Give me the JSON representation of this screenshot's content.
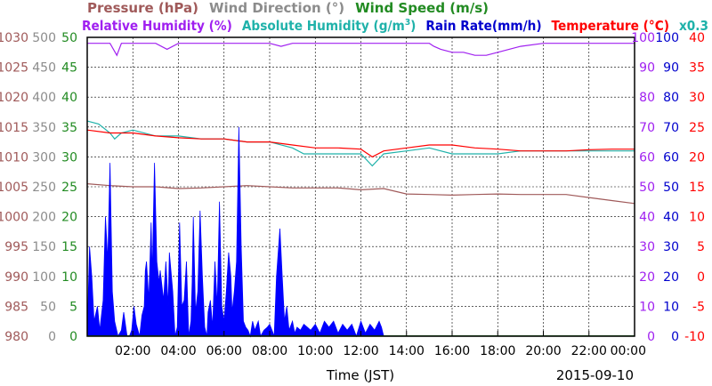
{
  "chart_data": {
    "type": "area",
    "title": "",
    "date": "2015-09-10",
    "xlabel": "Time (JST)",
    "x_range_hours": [
      0,
      24
    ],
    "x_ticks": [
      "02:00",
      "04:00",
      "06:00",
      "08:00",
      "10:00",
      "12:00",
      "14:00",
      "16:00",
      "18:00",
      "20:00",
      "22:00",
      "00:00"
    ],
    "grid": true,
    "legend": [
      {
        "row": 1,
        "segments": [
          {
            "text": "Pressure (hPa)",
            "color": "#a05a5a"
          },
          {
            "text": "Wind Direction (°)",
            "color": "#8c8c8c"
          },
          {
            "text": "Wind Speed (m/s)",
            "color": "#228b22"
          }
        ]
      },
      {
        "row": 2,
        "segments": [
          {
            "text": "Relative Humidity (%)",
            "color": "#a020f0"
          },
          {
            "text": "Absolute Humidity (g/m",
            "sup": "3",
            "tail": ")",
            "color": "#20b2aa"
          },
          {
            "text": "Rain Rate(mm/h)",
            "color": "#0000cd"
          },
          {
            "text": "Temperature (°C)",
            "color": "#ff0000"
          },
          {
            "text": "x0.3",
            "color": "#20b2aa"
          }
        ]
      }
    ],
    "axes": {
      "pressure": {
        "side": "left",
        "color": "#a05a5a",
        "ylim": [
          980,
          1030
        ],
        "ticks": [
          "980",
          "985",
          "990",
          "995",
          "1000",
          "1005",
          "1010",
          "1015",
          "1020",
          "1025",
          "1030"
        ]
      },
      "wind_direction": {
        "side": "left",
        "color": "#8c8c8c",
        "ylim": [
          0,
          500
        ],
        "ticks": [
          "0",
          "50",
          "100",
          "150",
          "200",
          "250",
          "300",
          "350",
          "400",
          "450",
          "500"
        ]
      },
      "wind_speed": {
        "side": "left",
        "color": "#228b22",
        "ylim": [
          0,
          50
        ],
        "ticks": [
          "0",
          "5",
          "10",
          "15",
          "20",
          "25",
          "30",
          "35",
          "40",
          "45",
          "50"
        ]
      },
      "relative_humidity": {
        "side": "right",
        "color": "#a020f0",
        "ylim": [
          0,
          100
        ],
        "ticks": [
          "0",
          "10",
          "20",
          "30",
          "40",
          "50",
          "60",
          "70",
          "80",
          "90",
          "100"
        ]
      },
      "rain_rate": {
        "side": "right",
        "color": "#0000cd",
        "ylim": [
          0,
          100
        ],
        "ticks": [
          "0",
          "10",
          "20",
          "30",
          "40",
          "50",
          "60",
          "70",
          "80",
          "90",
          "100"
        ]
      },
      "temperature": {
        "side": "right",
        "color": "#ff0000",
        "ylim": [
          -10,
          40
        ],
        "ticks": [
          "-10",
          "-5",
          "0",
          "5",
          "10",
          "15",
          "20",
          "25",
          "30",
          "35",
          "40"
        ]
      }
    },
    "series": [
      {
        "name": "Relative Humidity (%)",
        "axis": "relative_humidity",
        "color": "#a020f0",
        "x": [
          0,
          1.0,
          1.3,
          1.5,
          2.0,
          3.0,
          3.5,
          4.0,
          5.0,
          6.0,
          7.0,
          8.0,
          8.5,
          9.0,
          10.0,
          11.0,
          12.0,
          13.0,
          13.5,
          14.0,
          15.0,
          15.2,
          15.5,
          16.0,
          16.5,
          17.0,
          17.5,
          18.0,
          19.0,
          20.0,
          21.0,
          22.0,
          23.0,
          24.0
        ],
        "y": [
          98,
          98,
          94,
          98,
          98,
          98,
          96,
          98,
          98,
          98,
          98,
          98,
          97,
          98,
          98,
          98,
          98,
          98,
          98,
          98,
          98,
          97,
          96,
          95,
          95,
          94,
          94,
          95,
          97,
          98,
          98,
          98,
          98,
          98
        ]
      },
      {
        "name": "Absolute Humidity (g/m3) x0.3",
        "axis": "relative_humidity",
        "color": "#20b2aa",
        "x": [
          0,
          0.5,
          1.0,
          1.2,
          1.5,
          2.0,
          3.0,
          4.0,
          5.0,
          6.0,
          7.0,
          8.0,
          9.0,
          9.5,
          10.0,
          11.0,
          12.0,
          12.5,
          13.0,
          14.0,
          15.0,
          16.0,
          17.0,
          18.0,
          19.0,
          20.0,
          21.0,
          22.0,
          23.0,
          24.0
        ],
        "y": [
          72,
          71,
          68,
          66,
          68,
          69,
          67,
          67,
          66,
          66,
          65,
          65,
          63,
          61,
          61,
          61,
          61,
          57,
          61,
          62,
          63,
          61,
          61,
          61,
          62,
          62,
          62,
          62,
          62,
          62
        ]
      },
      {
        "name": "Temperature (°C)",
        "axis": "temperature",
        "color": "#ff0000",
        "x": [
          0,
          1.0,
          2.0,
          3.0,
          4.0,
          5.0,
          6.0,
          7.0,
          8.0,
          9.0,
          10.0,
          11.0,
          12.0,
          12.5,
          13.0,
          14.0,
          15.0,
          16.0,
          17.0,
          18.0,
          19.0,
          20.0,
          21.0,
          22.0,
          23.0,
          24.0
        ],
        "y": [
          24.5,
          24.0,
          24.0,
          23.5,
          23.2,
          23.0,
          23.0,
          22.5,
          22.5,
          22.0,
          21.5,
          21.5,
          21.3,
          20.0,
          21.0,
          21.5,
          22.0,
          22.0,
          21.5,
          21.3,
          21.0,
          21.0,
          21.0,
          21.2,
          21.3,
          21.3
        ]
      },
      {
        "name": "Pressure (hPa)",
        "axis": "pressure",
        "color": "#a05a5a",
        "x": [
          0,
          1.0,
          2.0,
          3.0,
          4.0,
          5.0,
          6.0,
          7.0,
          8.0,
          9.0,
          10.0,
          11.0,
          12.0,
          13.0,
          14.0,
          15.0,
          16.0,
          17.0,
          18.0,
          19.0,
          20.0,
          21.0,
          22.0,
          23.0,
          24.0
        ],
        "y": [
          1005.5,
          1005.2,
          1005.0,
          1005.0,
          1004.7,
          1004.8,
          1005.0,
          1005.2,
          1005.0,
          1004.8,
          1004.8,
          1004.8,
          1004.5,
          1004.7,
          1003.8,
          1003.7,
          1003.6,
          1003.7,
          1003.8,
          1003.7,
          1003.7,
          1003.7,
          1003.2,
          1002.7,
          1002.2
        ]
      },
      {
        "name": "Rain Rate(mm/h)",
        "axis": "rain_rate",
        "color": "#0000ff",
        "x": [
          0,
          0.1,
          0.2,
          0.3,
          0.45,
          0.55,
          0.7,
          0.8,
          0.9,
          1.0,
          1.1,
          1.2,
          1.35,
          1.5,
          1.6,
          1.75,
          1.85,
          1.95,
          2.05,
          2.15,
          2.3,
          2.4,
          2.5,
          2.55,
          2.6,
          2.7,
          2.8,
          2.85,
          2.95,
          3.05,
          3.15,
          3.2,
          3.35,
          3.45,
          3.55,
          3.6,
          3.75,
          3.85,
          3.95,
          4.05,
          4.15,
          4.25,
          4.35,
          4.45,
          4.55,
          4.6,
          4.65,
          4.75,
          4.85,
          4.95,
          5.05,
          5.15,
          5.25,
          5.3,
          5.4,
          5.5,
          5.6,
          5.7,
          5.8,
          5.9,
          6.0,
          6.1,
          6.2,
          6.3,
          6.35,
          6.45,
          6.55,
          6.65,
          6.75,
          6.85,
          6.95,
          7.05,
          7.15,
          7.25,
          7.35,
          7.5,
          7.6,
          7.75,
          7.9,
          8.0,
          8.1,
          8.2,
          8.3,
          8.45,
          8.55,
          8.65,
          8.75,
          8.85,
          9.0,
          9.1,
          9.2,
          9.35,
          9.5,
          9.65,
          9.8,
          10.0,
          10.2,
          10.4,
          10.6,
          10.8,
          11.0,
          11.2,
          11.4,
          11.6,
          11.8,
          12.0,
          12.2,
          12.4,
          12.6,
          12.8,
          12.9,
          13.0,
          13.01,
          24.0
        ],
        "y": [
          0,
          30,
          20,
          5,
          10,
          2,
          12,
          40,
          25,
          58,
          15,
          5,
          0,
          2,
          8,
          0,
          0,
          2,
          10,
          4,
          0,
          7,
          10,
          22,
          25,
          12,
          38,
          20,
          58,
          25,
          18,
          22,
          12,
          25,
          10,
          28,
          15,
          0,
          3,
          38,
          10,
          12,
          25,
          0,
          5,
          18,
          40,
          8,
          15,
          42,
          20,
          3,
          0,
          8,
          12,
          3,
          25,
          10,
          45,
          10,
          5,
          15,
          28,
          20,
          8,
          15,
          25,
          70,
          30,
          5,
          3,
          2,
          0,
          5,
          2,
          5,
          0,
          2,
          3,
          4,
          2,
          0,
          20,
          36,
          20,
          5,
          10,
          2,
          5,
          1,
          3,
          2,
          4,
          3,
          2,
          4,
          1,
          5,
          3,
          5,
          1,
          4,
          2,
          4,
          0,
          5,
          1,
          4,
          2,
          5,
          3,
          0,
          0,
          0
        ]
      }
    ]
  }
}
